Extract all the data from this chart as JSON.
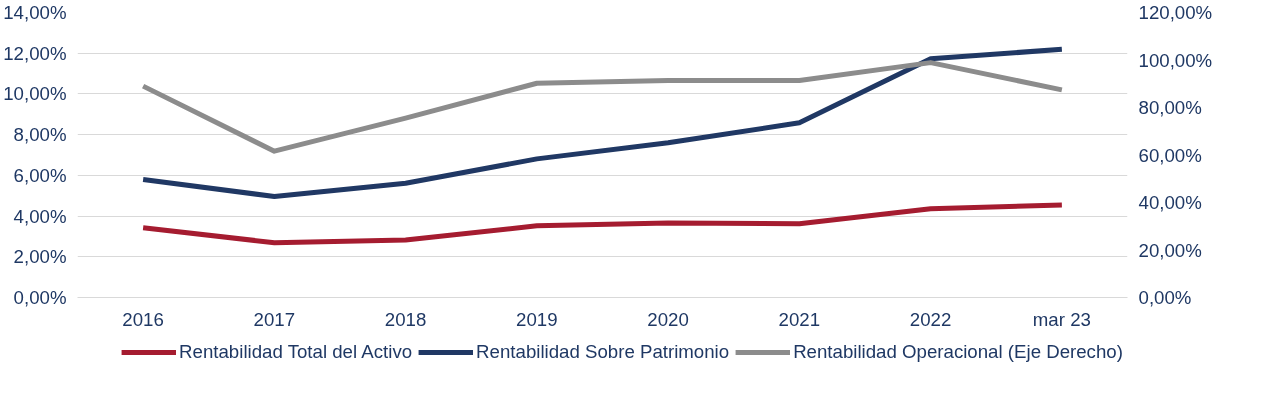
{
  "chart_data": {
    "type": "line",
    "categories": [
      "2016",
      "2017",
      "2018",
      "2019",
      "2020",
      "2021",
      "2022",
      "mar 23"
    ],
    "series": [
      {
        "name": "Rentabilidad Total del Activo",
        "color": "#a51c30",
        "values": [
          3.43,
          2.69,
          2.83,
          3.52,
          3.66,
          3.62,
          4.36,
          4.54
        ]
      },
      {
        "name": "Rentabilidad Sobre Patrimonio",
        "color": "#203864",
        "values": [
          5.8,
          4.96,
          5.61,
          6.81,
          7.6,
          8.58,
          11.73,
          12.19
        ]
      },
      {
        "name": "Rentabilidad Operacional (Eje Derecho)",
        "color": "#8c8c8c",
        "axis": "y2",
        "values": [
          89.0,
          61.6,
          75.5,
          90.2,
          91.4,
          91.4,
          98.9,
          87.4
        ]
      }
    ],
    "ylim": [
      0,
      14
    ],
    "yticks": [
      {
        "value": 0,
        "label": "0,00%"
      },
      {
        "value": 2,
        "label": "2,00%"
      },
      {
        "value": 4,
        "label": "4,00%"
      },
      {
        "value": 6,
        "label": "6,00%"
      },
      {
        "value": 8,
        "label": "8,00%"
      },
      {
        "value": 10,
        "label": "10,00%"
      },
      {
        "value": 12,
        "label": "12,00%"
      },
      {
        "value": 14,
        "label": "14,00%"
      }
    ],
    "y2lim": [
      0,
      120
    ],
    "y2ticks": [
      {
        "value": 0,
        "label": "0,00%"
      },
      {
        "value": 20,
        "label": "20,00%"
      },
      {
        "value": 40,
        "label": "40,00%"
      },
      {
        "value": 60,
        "label": "60,00%"
      },
      {
        "value": 80,
        "label": "80,00%"
      },
      {
        "value": 100,
        "label": "100,00%"
      },
      {
        "value": 120,
        "label": "120,00%"
      }
    ],
    "grid": "y",
    "legend": "bottom",
    "line_style": "solid"
  }
}
